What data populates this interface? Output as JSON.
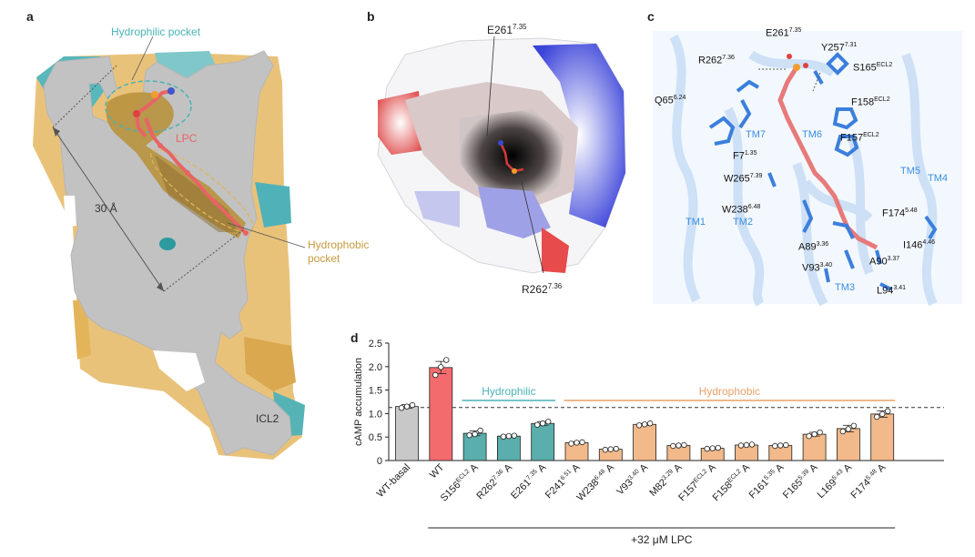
{
  "panels": {
    "a": {
      "label": "a",
      "hydrophilic_pocket": "Hydrophilic pocket",
      "lpc": "LPC",
      "distance": "30 Å",
      "hydrophobic_pocket_1": "Hydrophobic",
      "hydrophobic_pocket_2": "pocket",
      "icl2": "ICL2"
    },
    "b": {
      "label": "b",
      "e261": "E261",
      "e261_sup": "7.35",
      "r262": "R262",
      "r262_sup": "7.36"
    },
    "c": {
      "label": "c",
      "residues": [
        {
          "name": "E261",
          "sup": "7.35"
        },
        {
          "name": "Y257",
          "sup": "7.31"
        },
        {
          "name": "R262",
          "sup": "7.36"
        },
        {
          "name": "S165",
          "sup": "ECL2"
        },
        {
          "name": "Q65",
          "sup": "6.24"
        },
        {
          "name": "F158",
          "sup": "ECL2"
        },
        {
          "name": "F157",
          "sup": "ECL2"
        },
        {
          "name": "F7",
          "sup": "1.35"
        },
        {
          "name": "W265",
          "sup": "7.39"
        },
        {
          "name": "W238",
          "sup": "6.48"
        },
        {
          "name": "F174",
          "sup": "5.48"
        },
        {
          "name": "A89",
          "sup": "3.36"
        },
        {
          "name": "I146",
          "sup": "4.46"
        },
        {
          "name": "V93",
          "sup": "3.40"
        },
        {
          "name": "A90",
          "sup": "3.37"
        },
        {
          "name": "L94",
          "sup": "3.41"
        }
      ],
      "helices": [
        "TM7",
        "TM6",
        "TM5",
        "TM4",
        "TM1",
        "TM2",
        "TM3"
      ]
    }
  },
  "chart_data": {
    "type": "bar",
    "panel_label": "d",
    "ylabel": "cAMP accumulation",
    "ylim": [
      0,
      2.5
    ],
    "yticks": [
      "0",
      "0.5",
      "1.0",
      "1.5",
      "2.0",
      "2.5"
    ],
    "reference_line": 1.13,
    "group_labels": {
      "hydrophilic": "Hydrophilic",
      "hydrophobic": "Hydrophobic"
    },
    "treatment_label": "+32 μM LPC",
    "categories": [
      {
        "name": "WT-basal",
        "sup": "",
        "suffix": ""
      },
      {
        "name": "WT",
        "sup": "",
        "suffix": ""
      },
      {
        "name": "S156",
        "sup": "ECL2",
        "suffix": "A"
      },
      {
        "name": "R262",
        "sup": "7.36",
        "suffix": "A"
      },
      {
        "name": "E261",
        "sup": "7.35",
        "suffix": "A"
      },
      {
        "name": "F241",
        "sup": "6.51",
        "suffix": "A"
      },
      {
        "name": "W238",
        "sup": "6.48",
        "suffix": "A"
      },
      {
        "name": "V93",
        "sup": "3.40",
        "suffix": "A"
      },
      {
        "name": "M82",
        "sup": "3.29",
        "suffix": "A"
      },
      {
        "name": "F157",
        "sup": "ECL2",
        "suffix": "A"
      },
      {
        "name": "F158",
        "sup": "ECL2",
        "suffix": "A"
      },
      {
        "name": "F161",
        "sup": "5.35",
        "suffix": "A"
      },
      {
        "name": "F165",
        "sup": "5.39",
        "suffix": "A"
      },
      {
        "name": "L169",
        "sup": "5.43",
        "suffix": "A"
      },
      {
        "name": "F174",
        "sup": "5.48",
        "suffix": "A"
      }
    ],
    "values": [
      1.15,
      1.98,
      0.58,
      0.52,
      0.79,
      0.38,
      0.24,
      0.77,
      0.32,
      0.26,
      0.33,
      0.32,
      0.56,
      0.68,
      0.99
    ],
    "errors": [
      0.04,
      0.13,
      0.05,
      0.02,
      0.04,
      0.02,
      0.01,
      0.02,
      0.01,
      0.01,
      0.01,
      0.01,
      0.04,
      0.07,
      0.07
    ],
    "points": [
      [
        1.12,
        1.15,
        1.18
      ],
      [
        1.82,
        1.99,
        2.14
      ],
      [
        0.54,
        0.56,
        0.64
      ],
      [
        0.51,
        0.52,
        0.53
      ],
      [
        0.76,
        0.79,
        0.83
      ],
      [
        0.36,
        0.38,
        0.39
      ],
      [
        0.23,
        0.24,
        0.25
      ],
      [
        0.75,
        0.77,
        0.79
      ],
      [
        0.31,
        0.32,
        0.33
      ],
      [
        0.25,
        0.26,
        0.27
      ],
      [
        0.32,
        0.33,
        0.34
      ],
      [
        0.31,
        0.32,
        0.33
      ],
      [
        0.52,
        0.56,
        0.6
      ],
      [
        0.62,
        0.67,
        0.74
      ],
      [
        0.93,
        0.99,
        1.05
      ]
    ],
    "colors": {
      "basal": "#c8c8c8",
      "wt": "#f46b6e",
      "hydrophilic": "#5aaeab",
      "hydrophobic": "#f2b98a",
      "hydrophilic_label": "#4ab2b6",
      "hydrophobic_label": "#e9a06a"
    }
  }
}
